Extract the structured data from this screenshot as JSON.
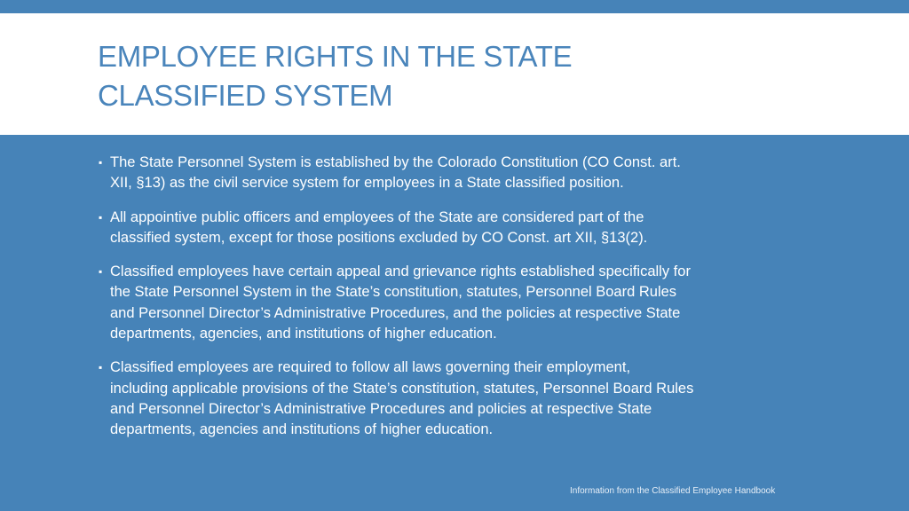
{
  "title": {
    "lines": [
      "EMPLOYEE RIGHTS IN THE STATE",
      "CLASSIFIED SYSTEM"
    ]
  },
  "bullets": [
    {
      "lines": [
        "The State Personnel System is established by the Colorado Constitution (CO Const. art.",
        "XII, §13) as the civil service system for employees in a State classified position."
      ]
    },
    {
      "lines": [
        "All appointive public officers and employees of the State are considered part of the",
        "classified system, except for those positions excluded by CO Const. art XII, §13(2)."
      ]
    },
    {
      "lines": [
        "Classified employees have certain appeal and grievance rights established specifically for",
        "the State Personnel System in the State’s constitution, statutes, Personnel Board Rules",
        "and Personnel Director’s Administrative Procedures, and the policies at respective State",
        "departments, agencies, and institutions of higher education."
      ]
    },
    {
      "lines": [
        "Classified employees are required to follow all laws governing their employment,",
        "including applicable provisions of the State’s constitution, statutes, Personnel Board Rules",
        "and Personnel Director’s Administrative Procedures and policies at respective State",
        "departments, agencies and institutions of higher education."
      ]
    }
  ],
  "bullet_glyph": "▪",
  "footer": "Information from the Classified Employee Handbook",
  "colors": {
    "background": "#4683b8",
    "title": "#4a85bb",
    "title_band": "#ffffff"
  }
}
